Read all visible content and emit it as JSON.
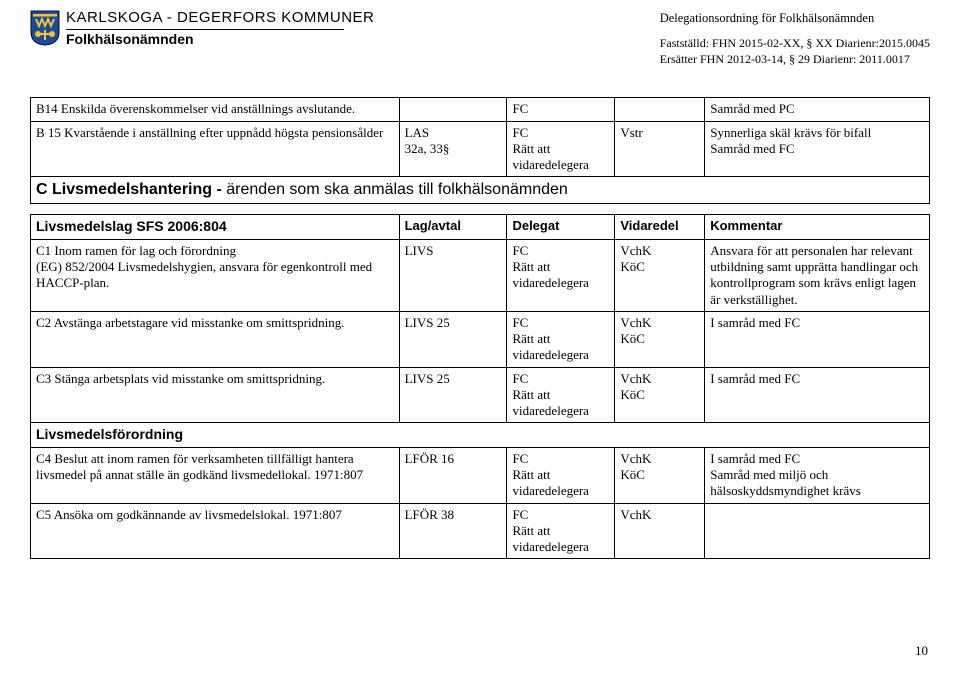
{
  "header": {
    "org_line1": "KARLSKOGA - DEGERFORS KOMMUNER",
    "org_line2": "Folkhälsonämnden",
    "doc_title": "Delegationsordning för Folkhälsonämnden",
    "meta_line1": "Fastställd: FHN 2015-02-XX, § XX Diarienr:2015.0045",
    "meta_line2": "Ersätter FHN 2012-03-14, § 29 Diarienr: 2011.0017"
  },
  "crest_colors": {
    "blue": "#1d4a9b",
    "yellow": "#f4c430",
    "outline": "#00334d"
  },
  "tableA": {
    "rows": [
      {
        "c1": "B14 Enskilda överenskommelser vid anställnings avslutande.",
        "c2": "",
        "c3": "FC",
        "c4": "",
        "c5": "Samråd med PC"
      },
      {
        "c1": "B 15 Kvarstående i anställning efter uppnådd högsta pensionsålder",
        "c2": "LAS\n32a, 33§",
        "c3": "FC\nRätt att\nvidaredelegera",
        "c4": "Vstr",
        "c5": "Synnerliga skäl krävs för bifall\nSamråd med FC"
      }
    ]
  },
  "sectionC": {
    "prefix_bold": "C Livsmedelshantering - ",
    "suffix": "ärenden som ska anmälas till folkhälsonämnden"
  },
  "tableB": {
    "head": {
      "c1": "Livsmedelslag SFS 2006:804",
      "c2": "Lag/avtal",
      "c3": "Delegat",
      "c4": "Vidaredel",
      "c5": "Kommentar"
    },
    "rows": [
      {
        "c1": "C1 Inom ramen för lag och förordning\n(EG) 852/2004 Livsmedelshygien, ansvara för egenkontroll med HACCP-plan.",
        "c2": "LIVS",
        "c3": "FC\nRätt att\nvidaredelegera",
        "c4": "VchK\nKöC",
        "c5": "Ansvara för att personalen har relevant utbildning samt upprätta handlingar och kontrollprogram som krävs enligt lagen är verkställighet."
      },
      {
        "c1": "C2 Avstänga arbetstagare vid misstanke om smittspridning.",
        "c2": "LIVS 25",
        "c3": "FC\nRätt att\nvidaredelegera",
        "c4": "VchK\nKöC",
        "c5": "I samråd med FC"
      },
      {
        "c1": "C3 Stänga arbetsplats vid misstanke om smittspridning.",
        "c2": "LIVS 25",
        "c3": "FC\nRätt att\nvidaredelegera",
        "c4": "VchK\nKöC",
        "c5": "I samråd med FC"
      }
    ],
    "subhead": "Livsmedelsförordning",
    "rows2": [
      {
        "c1": "C4 Beslut att inom ramen för verksamheten tillfälligt hantera livsmedel på annat ställe än godkänd livsmedellokal. 1971:807",
        "c2": "LFÖR 16",
        "c3": "FC\nRätt att\nvidaredelegera",
        "c4": "VchK\nKöC",
        "c5": "I samråd med FC\nSamråd med miljö och hälsoskyddsmyndighet krävs"
      },
      {
        "c1": "C5 Ansöka om godkännande av livsmedelslokal. 1971:807",
        "c2": "LFÖR 38",
        "c3": "FC\nRätt att\nvidaredelegera",
        "c4": "VchK",
        "c5": ""
      }
    ]
  },
  "page_number": "10"
}
